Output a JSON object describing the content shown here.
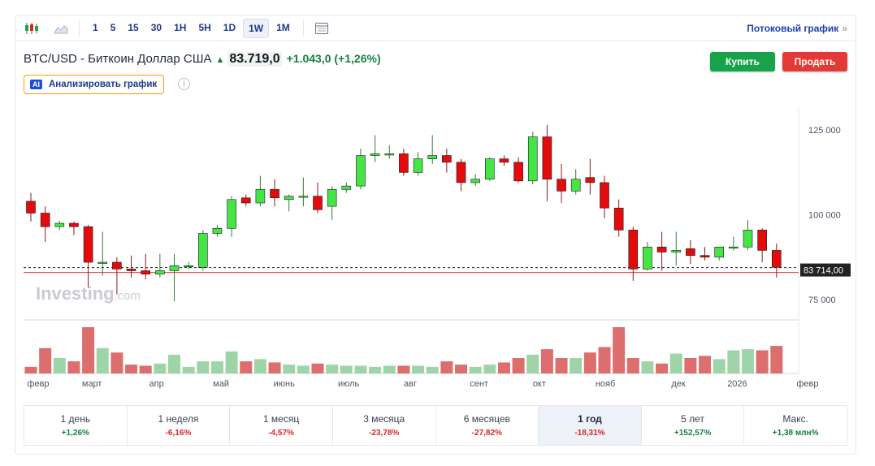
{
  "toolbar": {
    "timeframes": [
      "1",
      "5",
      "15",
      "30",
      "1H",
      "5H",
      "1D",
      "1W",
      "1M"
    ],
    "active_timeframe": "1W",
    "streaming_link": "Потоковый график",
    "streaming_chevron": "»"
  },
  "header": {
    "title": "BTC/USD - Биткоин Доллар США",
    "price": "83.719,0",
    "change_abs": "+1.043,0",
    "change_pct": "(+1,26%)",
    "buy_label": "Купить",
    "sell_label": "Продать",
    "ai_badge": "AI",
    "ai_label": "Анализировать график",
    "info_glyph": "i"
  },
  "colors": {
    "up": "#46e546",
    "down": "#e30b0b",
    "vol_up": "#9fd4a8",
    "vol_down": "#dc6e6e",
    "price_line": "#e53935",
    "accent": "#1e40af"
  },
  "chart_data": {
    "type": "candlestick",
    "series_name": "BTC/USD",
    "interval": "1W",
    "y_ticks": [
      75000,
      100000,
      125000
    ],
    "y_tick_labels": [
      "75 000",
      "100 000",
      "125 000"
    ],
    "ylim": [
      69000,
      132000
    ],
    "last_price_label": "83 714,00",
    "last_price": 83714,
    "x_labels": [
      "февр",
      "март",
      "апр",
      "май",
      "июнь",
      "июль",
      "авг",
      "сент",
      "окт",
      "нояб",
      "дек",
      "2026",
      "февр"
    ],
    "x_label_positions": [
      0,
      4.6,
      9.1,
      13.6,
      18,
      22.5,
      26.8,
      31.6,
      35.8,
      40.4,
      45.5,
      49.6,
      54.5
    ],
    "watermark": "Investing",
    "watermark_suffix": ".com",
    "candles": [
      [
        104000,
        106500,
        98000,
        100500
      ],
      [
        100500,
        102500,
        92000,
        96500
      ],
      [
        96500,
        98200,
        95500,
        97500
      ],
      [
        97500,
        98000,
        94000,
        96500
      ],
      [
        96500,
        97000,
        78500,
        86000
      ],
      [
        86000,
        95000,
        82000,
        86000
      ],
      [
        86000,
        87500,
        76500,
        84000
      ],
      [
        84000,
        88000,
        81500,
        83500
      ],
      [
        83500,
        88500,
        81000,
        82500
      ],
      [
        82500,
        88500,
        81500,
        83500
      ],
      [
        83500,
        88500,
        74500,
        85000
      ],
      [
        84700,
        86000,
        84000,
        85000
      ],
      [
        84500,
        95500,
        83500,
        94500
      ],
      [
        94500,
        97000,
        93500,
        96000
      ],
      [
        96000,
        105500,
        93500,
        104500
      ],
      [
        105000,
        106000,
        102500,
        103500
      ],
      [
        103500,
        111500,
        102500,
        107500
      ],
      [
        107500,
        110500,
        102500,
        105000
      ],
      [
        104500,
        106000,
        101000,
        105500
      ],
      [
        105500,
        111000,
        102500,
        105500
      ],
      [
        105500,
        109500,
        100500,
        101500
      ],
      [
        102500,
        108500,
        98500,
        107500
      ],
      [
        107500,
        109500,
        106500,
        108500
      ],
      [
        108500,
        119500,
        107500,
        117500
      ],
      [
        117500,
        123500,
        115500,
        118000
      ],
      [
        118000,
        120500,
        116500,
        118000
      ],
      [
        118000,
        119500,
        111500,
        112500
      ],
      [
        112500,
        118500,
        111500,
        116500
      ],
      [
        116500,
        123500,
        115000,
        117500
      ],
      [
        117500,
        119500,
        112500,
        115500
      ],
      [
        115500,
        116500,
        107000,
        109500
      ],
      [
        109500,
        112000,
        108500,
        110500
      ],
      [
        110500,
        117000,
        110000,
        116500
      ],
      [
        116500,
        117500,
        114500,
        115500
      ],
      [
        115500,
        117000,
        109500,
        110000
      ],
      [
        110000,
        124500,
        109000,
        123000
      ],
      [
        123000,
        126500,
        104000,
        110500
      ],
      [
        110500,
        115000,
        103500,
        107000
      ],
      [
        107000,
        113500,
        106000,
        110500
      ],
      [
        111000,
        116500,
        106000,
        109500
      ],
      [
        109500,
        111500,
        99000,
        102000
      ],
      [
        102000,
        104500,
        93500,
        95500
      ],
      [
        95500,
        96500,
        80500,
        84000
      ],
      [
        84000,
        92000,
        83500,
        90500
      ],
      [
        90500,
        95000,
        83500,
        89000
      ],
      [
        89000,
        95000,
        85000,
        89500
      ],
      [
        90000,
        92500,
        85500,
        88000
      ],
      [
        88000,
        90500,
        86500,
        87500
      ],
      [
        87500,
        90500,
        86500,
        90500
      ],
      [
        90500,
        93500,
        89500,
        90500
      ],
      [
        90500,
        98500,
        89500,
        95500
      ],
      [
        95500,
        96000,
        86000,
        89500
      ],
      [
        89500,
        91500,
        81500,
        84500
      ]
    ],
    "volumes": [
      6,
      23,
      14,
      11,
      42,
      23,
      19,
      8,
      7,
      9,
      17,
      6,
      11,
      11,
      20,
      11,
      13,
      10,
      8,
      7,
      9,
      8,
      7,
      7,
      6,
      7,
      7,
      7,
      6,
      11,
      8,
      6,
      8,
      10,
      14,
      17,
      22,
      14,
      14,
      19,
      24,
      42,
      14,
      11,
      9,
      18,
      14,
      16,
      13,
      21,
      22,
      21,
      25
    ]
  },
  "periods": [
    {
      "label": "1 день",
      "value": "+1,26%",
      "positive": true
    },
    {
      "label": "1 неделя",
      "value": "-6,16%",
      "positive": false
    },
    {
      "label": "1 месяц",
      "value": "-4,57%",
      "positive": false
    },
    {
      "label": "3 месяца",
      "value": "-23,78%",
      "positive": false
    },
    {
      "label": "6 месяцев",
      "value": "-27,82%",
      "positive": false
    },
    {
      "label": "1 год",
      "value": "-18,31%",
      "positive": false,
      "active": true
    },
    {
      "label": "5 лет",
      "value": "+152,57%",
      "positive": true
    },
    {
      "label": "Макс.",
      "value": "+1,38 млн%",
      "positive": true
    }
  ]
}
